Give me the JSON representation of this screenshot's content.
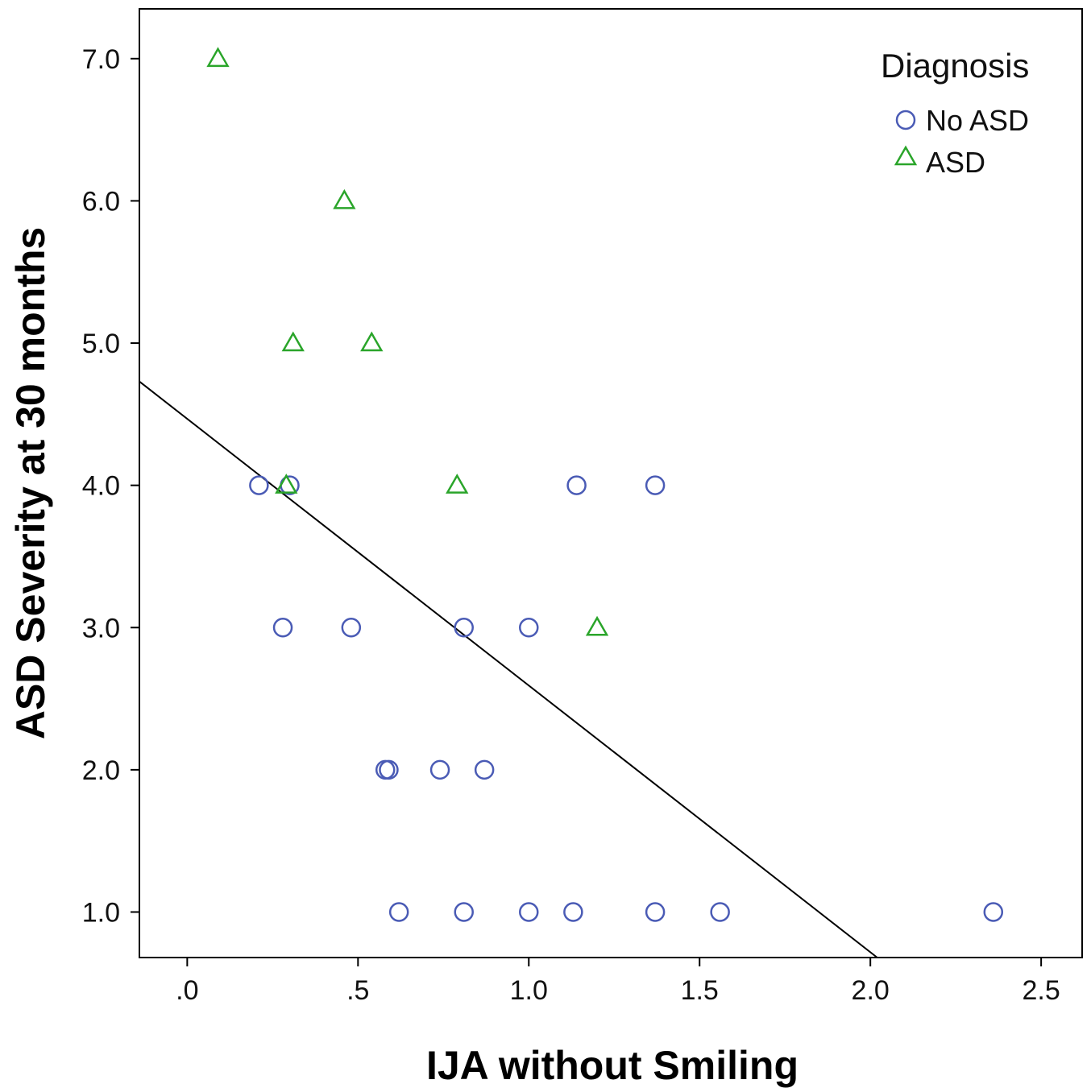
{
  "chart_data": {
    "type": "scatter",
    "xlabel": "IJA without Smiling",
    "ylabel": "ASD Severity at 30 months",
    "xlim": [
      -0.14,
      2.62
    ],
    "ylim": [
      0.68,
      7.35
    ],
    "x_ticks": [
      0.0,
      0.5,
      1.0,
      1.5,
      2.0,
      2.5
    ],
    "x_tick_labels": [
      ".0",
      ".5",
      "1.0",
      "1.5",
      "2.0",
      "2.5"
    ],
    "y_ticks": [
      1.0,
      2.0,
      3.0,
      4.0,
      5.0,
      6.0,
      7.0
    ],
    "y_tick_labels": [
      "1.0",
      "2.0",
      "3.0",
      "4.0",
      "5.0",
      "6.0",
      "7.0"
    ],
    "grid": false,
    "legend": {
      "title": "Diagnosis",
      "position": "top-right",
      "entries": [
        {
          "label": "No ASD",
          "marker": "circle",
          "color": "#4a5bb5"
        },
        {
          "label": "ASD",
          "marker": "triangle",
          "color": "#2aa52a"
        }
      ]
    },
    "series": [
      {
        "name": "No ASD",
        "marker": "circle",
        "color": "#4a5bb5",
        "points": [
          {
            "x": 0.21,
            "y": 4.0
          },
          {
            "x": 0.3,
            "y": 4.0
          },
          {
            "x": 1.14,
            "y": 4.0
          },
          {
            "x": 1.37,
            "y": 4.0
          },
          {
            "x": 0.28,
            "y": 3.0
          },
          {
            "x": 0.48,
            "y": 3.0
          },
          {
            "x": 0.81,
            "y": 3.0
          },
          {
            "x": 1.0,
            "y": 3.0
          },
          {
            "x": 0.58,
            "y": 2.0
          },
          {
            "x": 0.59,
            "y": 2.0
          },
          {
            "x": 0.74,
            "y": 2.0
          },
          {
            "x": 0.87,
            "y": 2.0
          },
          {
            "x": 0.62,
            "y": 1.0
          },
          {
            "x": 0.81,
            "y": 1.0
          },
          {
            "x": 1.0,
            "y": 1.0
          },
          {
            "x": 1.13,
            "y": 1.0
          },
          {
            "x": 1.37,
            "y": 1.0
          },
          {
            "x": 1.56,
            "y": 1.0
          },
          {
            "x": 2.36,
            "y": 1.0
          }
        ]
      },
      {
        "name": "ASD",
        "marker": "triangle",
        "color": "#2aa52a",
        "points": [
          {
            "x": 0.09,
            "y": 7.0
          },
          {
            "x": 0.46,
            "y": 6.0
          },
          {
            "x": 0.31,
            "y": 5.0
          },
          {
            "x": 0.54,
            "y": 5.0
          },
          {
            "x": 0.29,
            "y": 4.0
          },
          {
            "x": 0.79,
            "y": 4.0
          },
          {
            "x": 1.2,
            "y": 3.0
          }
        ]
      }
    ],
    "fit_line": {
      "color": "#000000",
      "points": [
        {
          "x": -0.14,
          "y": 4.73
        },
        {
          "x": 2.02,
          "y": 0.68
        }
      ]
    }
  }
}
